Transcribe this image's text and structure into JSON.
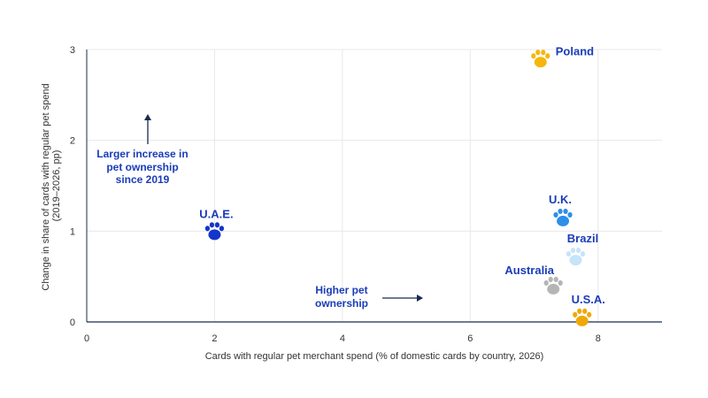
{
  "chart_data": {
    "type": "scatter",
    "xlabel": "Cards with regular pet merchant spend (% of domestic cards by country, 2026)",
    "ylabel": [
      "Change in share of cards with regular pet spend",
      "(2019–2026, pp)"
    ],
    "xlim": [
      0,
      9
    ],
    "ylim": [
      0,
      3
    ],
    "x_ticks": [
      0,
      2,
      4,
      6,
      8
    ],
    "y_ticks": [
      0,
      1,
      2,
      3
    ],
    "grid": true,
    "points": [
      {
        "label": "Poland",
        "x": 7.1,
        "y": 2.9,
        "color": "#F5B70F"
      },
      {
        "label": "U.A.E.",
        "x": 2.0,
        "y": 1.0,
        "color": "#1434CB"
      },
      {
        "label": "U.K.",
        "x": 7.45,
        "y": 1.15,
        "color": "#2E8EE8"
      },
      {
        "label": "Brazil",
        "x": 7.65,
        "y": 0.72,
        "color": "#C6E4FA"
      },
      {
        "label": "Australia",
        "x": 7.3,
        "y": 0.4,
        "color": "#B5B5B5"
      },
      {
        "label": "U.S.A.",
        "x": 7.75,
        "y": 0.05,
        "color": "#F0A808"
      }
    ],
    "label_color": "#1A3CB8",
    "annotations": [
      {
        "lines": [
          "Larger increase in",
          "pet ownership",
          "since 2019"
        ],
        "arrow": "up"
      },
      {
        "lines": [
          "Higher pet",
          "ownership"
        ],
        "arrow": "right"
      }
    ],
    "annotation_color": "#1A3CB8",
    "arrow_color": "#1B2A4E"
  }
}
